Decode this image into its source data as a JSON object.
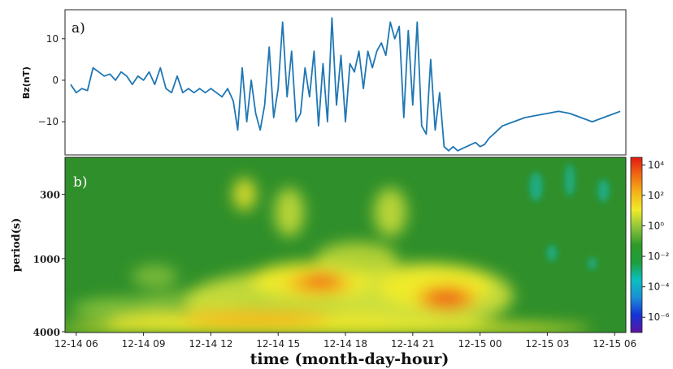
{
  "chart_data": [
    {
      "type": "line",
      "panel_label": "a)",
      "ylabel": "Bz(nT)",
      "ylim": [
        -18,
        17
      ],
      "y_ticks": [
        "10",
        "0",
        "−10"
      ],
      "y_tick_values": [
        10,
        0,
        -10
      ],
      "x_range_hours": [
        5.5,
        30.5
      ],
      "grid": false,
      "color": "#1f77b4",
      "series": [
        {
          "x": [
            5.75,
            6.0,
            6.25,
            6.5,
            6.75,
            7.0,
            7.25,
            7.5,
            7.75,
            8.0,
            8.25,
            8.5,
            8.75,
            9.0,
            9.25,
            9.5,
            9.75,
            10.0,
            10.25,
            10.5,
            10.75,
            11.0,
            11.25,
            11.5,
            11.75,
            12.0,
            12.25,
            12.5,
            12.75,
            13.0,
            13.2,
            13.4,
            13.6,
            13.8,
            14.0,
            14.2,
            14.4,
            14.6,
            14.8,
            15.0,
            15.2,
            15.4,
            15.6,
            15.8,
            16.0,
            16.2,
            16.4,
            16.6,
            16.8,
            17.0,
            17.2,
            17.4,
            17.6,
            17.8,
            18.0,
            18.2,
            18.4,
            18.6,
            18.8,
            19.0,
            19.2,
            19.4,
            19.6,
            19.8,
            20.0,
            20.2,
            20.4,
            20.6,
            20.8,
            21.0,
            21.2,
            21.4,
            21.6,
            21.8,
            22.0,
            22.2,
            22.4,
            22.6,
            22.8,
            23.0,
            23.2,
            23.4,
            23.6,
            23.8,
            24.0,
            24.2,
            24.4,
            24.6,
            24.8,
            25.0,
            25.5,
            26.0,
            26.5,
            27.0,
            27.5,
            28.0,
            28.5,
            29.0,
            29.5,
            30.0,
            30.25
          ],
          "y": [
            -1,
            -3,
            -2,
            -2.5,
            3,
            2,
            1,
            1.5,
            0,
            2,
            1,
            -1,
            1,
            0,
            2,
            -1,
            3,
            -2,
            -3,
            1,
            -3,
            -2,
            -3,
            -2,
            -3,
            -2,
            -3,
            -4,
            -2,
            -5,
            -12,
            3,
            -10,
            0,
            -8,
            -12,
            -6,
            8,
            -9,
            -2,
            14,
            -4,
            7,
            -10,
            -8,
            3,
            -4,
            7,
            -11,
            4,
            -10,
            15,
            -6,
            6,
            -10,
            4,
            2,
            7,
            -2,
            7,
            3,
            7,
            9,
            6,
            14,
            10,
            13,
            -9,
            12,
            -6,
            14,
            -11,
            -13,
            5,
            -12,
            -3,
            -16,
            -17,
            -16,
            -17,
            -16.5,
            -16,
            -15.5,
            -15,
            -16,
            -15.5,
            -14,
            -13,
            -12,
            -11,
            -10,
            -9,
            -8.5,
            -8,
            -7.5,
            -8,
            -9,
            -10,
            -9,
            -8,
            -7.5
          ],
          "note": "approx"
        }
      ]
    },
    {
      "type": "heatmap",
      "panel_label": "b)",
      "ylabel": "period(s)",
      "xlabel": "time (month-day-hour)",
      "y_scale": "log",
      "ylim": [
        4000,
        150
      ],
      "y_ticks": [
        "300",
        "1000",
        "4000"
      ],
      "y_tick_values": [
        300,
        1000,
        4000
      ],
      "x_ticks": [
        "12-14 06",
        "12-14 09",
        "12-14 12",
        "12-14 15",
        "12-14 18",
        "12-14 21",
        "12-15 00",
        "12-15 03",
        "12-15 06"
      ],
      "x_tick_hours": [
        6,
        9,
        12,
        15,
        18,
        21,
        24,
        27,
        30
      ],
      "colorbar": {
        "scale": "log",
        "labels": [
          "10⁴",
          "10²",
          "10⁰",
          "10⁻²",
          "10⁻⁴",
          "10⁻⁶"
        ],
        "exponents": [
          4,
          2,
          0,
          -2,
          -4,
          -6
        ],
        "range_exp": [
          -7,
          4.5
        ],
        "colors": [
          "#5c14a0",
          "#1433d6",
          "#1b8fd6",
          "#0bbfbf",
          "#1e9e3c",
          "#2f9a2a",
          "#8cc43b",
          "#f0ea2a",
          "#f4b31a",
          "#ef6a12",
          "#e01a12"
        ]
      },
      "hotspots": [
        {
          "t_hours": 16.8,
          "period_s": 1600,
          "power_exp": 3.3
        },
        {
          "t_hours": 22.5,
          "period_s": 2100,
          "power_exp": 3.8
        },
        {
          "t_hours": 14.0,
          "period_s": 3000,
          "power_exp": 2.2
        }
      ]
    }
  ]
}
